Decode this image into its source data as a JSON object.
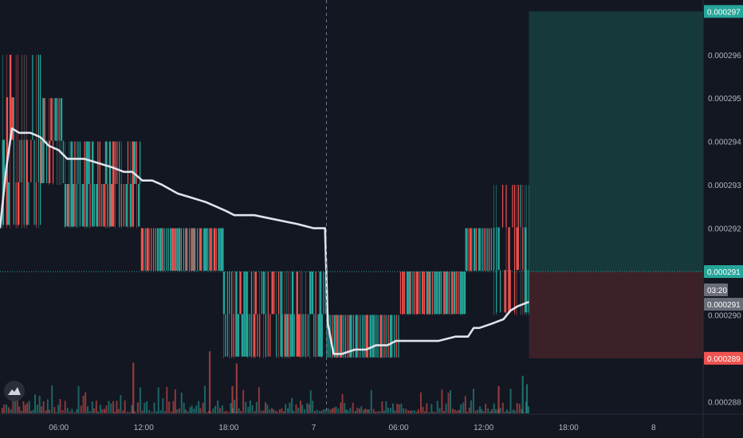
{
  "colors": {
    "background": "#131722",
    "up": "#26a69a",
    "down": "#ef5350",
    "vwap": "#e0e3eb",
    "axis_text": "#b2b5be",
    "profit_zone": "#163a3b",
    "loss_zone": "#3c2128",
    "price_line": "#26a69a",
    "label_green": "#26a69a",
    "label_red": "#ef5350",
    "label_gray": "#6a6d78"
  },
  "chart_data": {
    "type": "candlestick",
    "y_axis": {
      "range": [
        0.0002874,
        0.0002973
      ],
      "tick_labels": [
        "0.000297",
        "0.000296",
        "0.000295",
        "0.000294",
        "0.000293",
        "0.000292",
        "0.000291",
        "0.000290",
        "0.000289",
        "0.000288"
      ],
      "tick_values": [
        0.000297,
        0.000296,
        0.000295,
        0.000294,
        0.000293,
        0.000292,
        0.000291,
        0.00029,
        0.000289,
        0.000288
      ]
    },
    "x_axis": {
      "tick_labels": [
        "06:00",
        "12:00",
        "18:00",
        "7",
        "06:00",
        "12:00",
        "18:00",
        "8"
      ],
      "tick_hours": [
        6,
        12,
        18,
        24,
        30,
        36,
        42,
        48
      ],
      "hour_range": [
        1.85,
        51.5
      ]
    },
    "crosshair_hour": 24.9,
    "price_levels": {
      "current_price": "0.000291",
      "current_value": 0.000291,
      "countdown": "03:20",
      "countdown_price": "0.000291",
      "target_price": "0.000297",
      "target_value": 0.000297,
      "stop_price": "0.000289",
      "stop_value": 0.000289
    },
    "position_box": {
      "start_hour": 39.2,
      "end_hour": 51.5,
      "entry": 0.000291,
      "target": 0.000297,
      "stop": 0.000289
    },
    "candle_segments": [
      {
        "from_hour": 2.0,
        "to_hour": 4.7,
        "low": 0.000292,
        "high": 0.000296
      },
      {
        "from_hour": 4.7,
        "to_hour": 6.4,
        "low": 0.000293,
        "high": 0.000295
      },
      {
        "from_hour": 6.4,
        "to_hour": 9.0,
        "low": 0.000292,
        "high": 0.000294
      },
      {
        "from_hour": 9.0,
        "to_hour": 11.8,
        "low": 0.000292,
        "high": 0.000294
      },
      {
        "from_hour": 11.8,
        "to_hour": 13.3,
        "low": 0.000291,
        "high": 0.000292
      },
      {
        "from_hour": 13.3,
        "to_hour": 17.6,
        "low": 0.000291,
        "high": 0.000292
      },
      {
        "from_hour": 17.6,
        "to_hour": 24.9,
        "low": 0.000289,
        "high": 0.000291
      },
      {
        "from_hour": 24.9,
        "to_hour": 30.1,
        "low": 0.000289,
        "high": 0.00029
      },
      {
        "from_hour": 30.1,
        "to_hour": 34.7,
        "low": 0.00029,
        "high": 0.000291
      },
      {
        "from_hour": 34.7,
        "to_hour": 36.7,
        "low": 0.000291,
        "high": 0.000292
      },
      {
        "from_hour": 36.7,
        "to_hour": 39.2,
        "low": 0.00029,
        "high": 0.000293
      }
    ],
    "vwap": {
      "hours": [
        1.85,
        2.3,
        2.7,
        3.2,
        4.0,
        4.7,
        5.3,
        6.0,
        6.6,
        7.1,
        7.8,
        8.8,
        9.8,
        10.6,
        11.2,
        11.9,
        12.6,
        13.3,
        14.4,
        15.4,
        16.4,
        17.1,
        17.8,
        18.4,
        19.8,
        21.3,
        22.8,
        24.0,
        24.8,
        25.0,
        25.4,
        26.0,
        26.9,
        27.7,
        28.4,
        29.2,
        29.8,
        30.4,
        31.5,
        32.8,
        34.0,
        34.9,
        35.3,
        35.7,
        36.6,
        37.4,
        37.9,
        38.4,
        39.2
      ],
      "values": [
        0.000292,
        0.0002934,
        0.0002943,
        0.0002942,
        0.0002942,
        0.0002941,
        0.0002939,
        0.0002938,
        0.0002936,
        0.0002936,
        0.0002936,
        0.0002935,
        0.0002934,
        0.0002933,
        0.0002933,
        0.0002931,
        0.0002931,
        0.000293,
        0.0002928,
        0.0002927,
        0.0002926,
        0.0002925,
        0.0002924,
        0.0002923,
        0.0002923,
        0.0002922,
        0.0002921,
        0.000292,
        0.000292,
        0.0002898,
        0.0002891,
        0.0002891,
        0.0002892,
        0.0002892,
        0.0002893,
        0.0002893,
        0.0002894,
        0.0002894,
        0.0002894,
        0.0002894,
        0.0002895,
        0.0002895,
        0.0002897,
        0.0002897,
        0.0002898,
        0.0002899,
        0.0002901,
        0.0002902,
        0.0002903
      ]
    },
    "volume": {
      "note": "relative volume, scale 0-100",
      "bars": [
        {
          "hour": 11.2,
          "value": 54,
          "dir": "down"
        },
        {
          "hour": 16.6,
          "value": 66,
          "dir": "down"
        },
        {
          "hour": 18.2,
          "value": 29,
          "dir": "down"
        },
        {
          "hour": 18.5,
          "value": 53,
          "dir": "down"
        },
        {
          "hour": 37.0,
          "value": 29,
          "dir": "down"
        },
        {
          "hour": 38.7,
          "value": 40,
          "dir": "up"
        },
        {
          "hour": 39.0,
          "value": 31,
          "dir": "up"
        }
      ]
    }
  }
}
